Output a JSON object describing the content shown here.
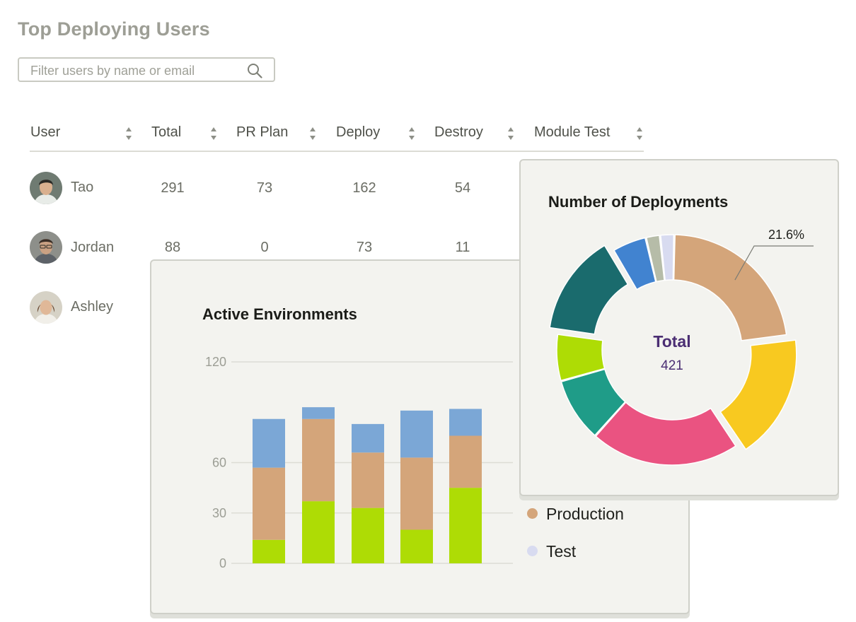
{
  "page": {
    "title": "Top Deploying Users"
  },
  "search": {
    "placeholder": "Filter users by name or email",
    "value": ""
  },
  "table": {
    "columns": [
      "User",
      "Total",
      "PR Plan",
      "Deploy",
      "Destroy",
      "Module Test"
    ],
    "rows": [
      {
        "user": "Tao",
        "total": "291",
        "pr_plan": "73",
        "deploy": "162",
        "destroy": "54"
      },
      {
        "user": "Jordan",
        "total": "88",
        "pr_plan": "0",
        "deploy": "73",
        "destroy": "11"
      },
      {
        "user": "Ashley"
      }
    ]
  },
  "active_environments": {
    "title": "Active Environments",
    "legend": [
      {
        "label": "Production",
        "color": "#d4a57a"
      },
      {
        "label": "Test",
        "color": "#d8dbf0"
      }
    ]
  },
  "deployments": {
    "title": "Number of Deployments",
    "center_label": "Total",
    "center_value": "421",
    "callout": "21.6%"
  },
  "chart_data": [
    {
      "type": "bar",
      "stacked": true,
      "title": "Active Environments",
      "categories": [
        "",
        "",
        "",
        "",
        ""
      ],
      "yticks": [
        0,
        30,
        60,
        120
      ],
      "ylim": [
        0,
        120
      ],
      "grid": true,
      "series": [
        {
          "values": [
            14,
            37,
            33,
            20,
            45
          ],
          "color": "#aedc05"
        },
        {
          "name": "Production",
          "values": [
            43,
            49,
            33,
            43,
            31
          ],
          "color": "#d4a57a"
        },
        {
          "values": [
            29,
            7,
            17,
            28,
            16
          ],
          "color": "#7ba7d6"
        }
      ]
    },
    {
      "type": "pie",
      "donut": true,
      "title": "Number of Deployments",
      "total": 421,
      "slices": [
        {
          "value": 21.6,
          "label": "21.6%",
          "color": "#d4a57a",
          "exploded": false
        },
        {
          "value": 16.8,
          "color": "#f8c920",
          "exploded": true
        },
        {
          "value": 20.0,
          "color": "#ea5381",
          "exploded": false
        },
        {
          "value": 8.6,
          "color": "#1f9c88",
          "exploded": false
        },
        {
          "value": 6.3,
          "color": "#aedc05",
          "exploded": false
        },
        {
          "value": 13.6,
          "color": "#1a6b6d",
          "exploded": true
        },
        {
          "value": 4.6,
          "color": "#4183d0",
          "exploded": false
        },
        {
          "value": 1.9,
          "color": "#b6bca8",
          "exploded": false
        },
        {
          "value": 1.9,
          "color": "#d8dbf0",
          "exploded": false
        }
      ]
    }
  ]
}
